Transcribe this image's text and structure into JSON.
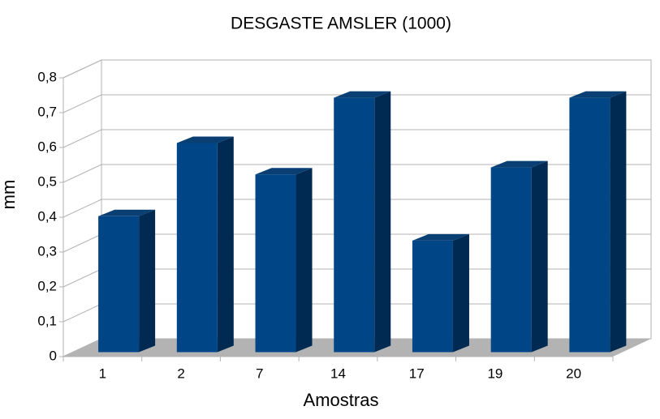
{
  "chart_data": {
    "type": "bar3d",
    "title": "DESGASTE AMSLER (1000)",
    "x_label": "Amostras",
    "y_label": "mm",
    "categories": [
      "1",
      "2",
      "7",
      "14",
      "17",
      "19",
      "20"
    ],
    "values": [
      0.39,
      0.6,
      0.51,
      0.73,
      0.32,
      0.53,
      0.73
    ],
    "color": "#004586",
    "ylim": [
      0,
      0.8
    ],
    "yticks": [
      0,
      {
        "value": 0.1,
        "label": "0,1"
      },
      {
        "value": 0.2,
        "label": "0,2"
      },
      {
        "value": 0.3,
        "label": "0,3"
      },
      {
        "value": 0.4,
        "label": "0,4"
      },
      {
        "value": 0.5,
        "label": "0,5"
      },
      {
        "value": 0.6,
        "label": "0,6"
      },
      {
        "value": 0.7,
        "label": "0,7"
      },
      {
        "value": 0.8,
        "label": "0,8"
      }
    ],
    "grid": true
  }
}
